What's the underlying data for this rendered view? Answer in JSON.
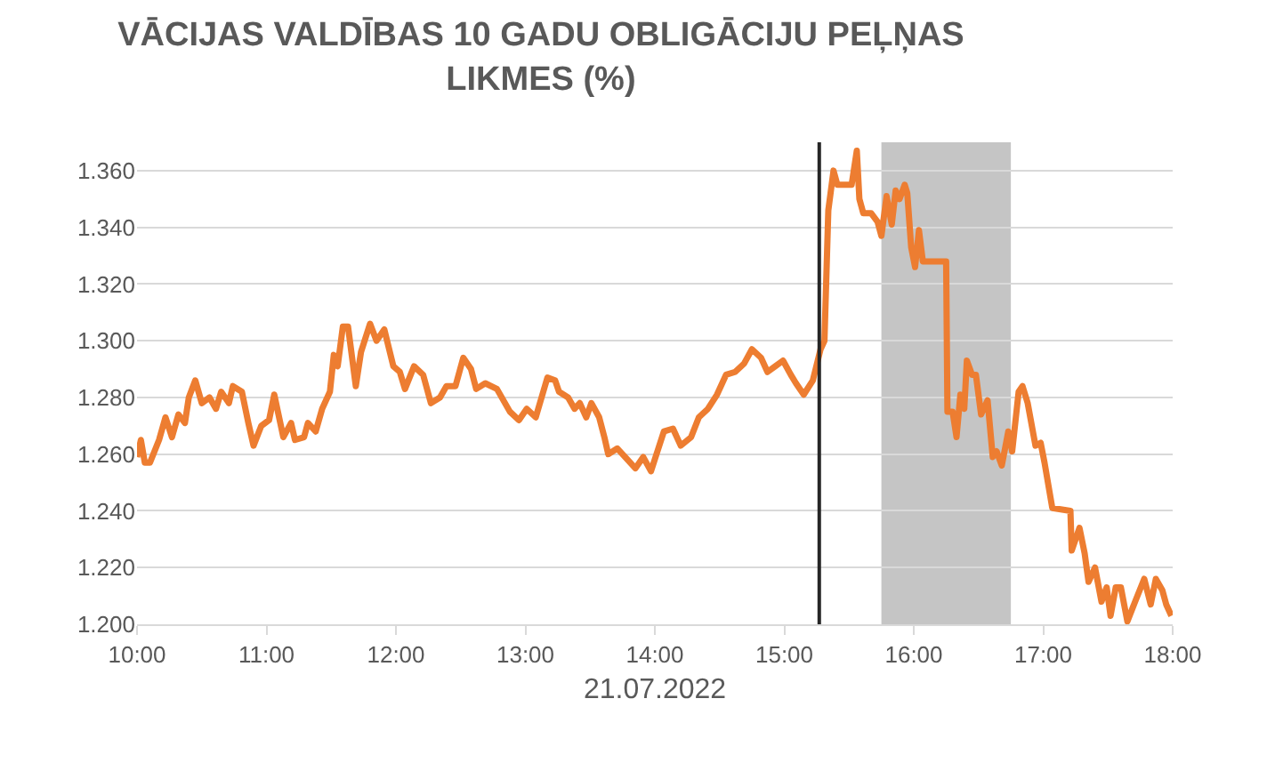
{
  "chart_data": {
    "type": "line",
    "title": "VĀCIJAS VALDĪBAS 10 GADU OBLIGĀCIJU PEĻŅAS\nLIKMES (%)",
    "xlabel": "21.07.2022",
    "x": [
      10.0,
      10.03,
      10.06,
      10.1,
      10.17,
      10.22,
      10.27,
      10.32,
      10.37,
      10.4,
      10.45,
      10.5,
      10.56,
      10.61,
      10.65,
      10.71,
      10.74,
      10.81,
      10.86,
      10.9,
      10.96,
      11.02,
      11.06,
      11.13,
      11.19,
      11.22,
      11.29,
      11.32,
      11.38,
      11.43,
      11.49,
      11.52,
      11.55,
      11.59,
      11.63,
      11.69,
      11.73,
      11.8,
      11.85,
      11.91,
      11.98,
      12.03,
      12.07,
      12.14,
      12.21,
      12.27,
      12.34,
      12.39,
      12.46,
      12.52,
      12.58,
      12.62,
      12.69,
      12.78,
      12.88,
      12.95,
      13.01,
      13.08,
      13.17,
      13.23,
      13.26,
      13.33,
      13.38,
      13.42,
      13.47,
      13.51,
      13.57,
      13.61,
      13.64,
      13.71,
      13.77,
      13.85,
      13.91,
      13.97,
      14.02,
      14.07,
      14.14,
      14.2,
      14.28,
      14.34,
      14.41,
      14.48,
      14.55,
      14.62,
      14.69,
      14.75,
      14.82,
      14.87,
      14.93,
      14.99,
      15.05,
      15.09,
      15.15,
      15.22,
      15.28,
      15.31,
      15.34,
      15.38,
      15.41,
      15.52,
      15.56,
      15.58,
      15.61,
      15.67,
      15.72,
      15.75,
      15.79,
      15.83,
      15.86,
      15.89,
      15.93,
      15.95,
      15.98,
      16.01,
      16.04,
      16.07,
      16.11,
      16.25,
      16.26,
      16.3,
      16.33,
      16.36,
      16.39,
      16.41,
      16.45,
      16.48,
      16.52,
      16.57,
      16.61,
      16.64,
      16.68,
      16.73,
      16.76,
      16.81,
      16.84,
      16.88,
      16.94,
      16.98,
      17.01,
      17.07,
      17.21,
      17.22,
      17.28,
      17.32,
      17.35,
      17.4,
      17.45,
      17.49,
      17.52,
      17.56,
      17.6,
      17.65,
      17.71,
      17.78,
      17.83,
      17.87,
      17.92,
      17.95,
      17.99
    ],
    "series": [
      {
        "color": "#ed7d31",
        "values": [
          1.259,
          1.265,
          1.257,
          1.257,
          1.265,
          1.273,
          1.266,
          1.274,
          1.271,
          1.28,
          1.286,
          1.278,
          1.28,
          1.276,
          1.282,
          1.278,
          1.284,
          1.282,
          1.271,
          1.263,
          1.27,
          1.272,
          1.281,
          1.266,
          1.271,
          1.265,
          1.266,
          1.271,
          1.268,
          1.276,
          1.282,
          1.295,
          1.291,
          1.305,
          1.305,
          1.284,
          1.296,
          1.306,
          1.3,
          1.304,
          1.291,
          1.289,
          1.283,
          1.291,
          1.288,
          1.278,
          1.28,
          1.284,
          1.284,
          1.294,
          1.29,
          1.283,
          1.285,
          1.283,
          1.275,
          1.272,
          1.276,
          1.273,
          1.287,
          1.286,
          1.282,
          1.28,
          1.276,
          1.278,
          1.273,
          1.278,
          1.273,
          1.266,
          1.26,
          1.262,
          1.259,
          1.255,
          1.259,
          1.254,
          1.261,
          1.268,
          1.269,
          1.263,
          1.266,
          1.273,
          1.276,
          1.281,
          1.288,
          1.289,
          1.292,
          1.297,
          1.294,
          1.289,
          1.291,
          1.293,
          1.288,
          1.285,
          1.281,
          1.286,
          1.297,
          1.3,
          1.346,
          1.36,
          1.355,
          1.355,
          1.367,
          1.35,
          1.345,
          1.345,
          1.342,
          1.337,
          1.351,
          1.341,
          1.353,
          1.35,
          1.355,
          1.352,
          1.333,
          1.326,
          1.339,
          1.328,
          1.328,
          1.328,
          1.275,
          1.275,
          1.266,
          1.281,
          1.276,
          1.293,
          1.288,
          1.288,
          1.274,
          1.279,
          1.259,
          1.261,
          1.256,
          1.268,
          1.261,
          1.282,
          1.284,
          1.278,
          1.263,
          1.264,
          1.257,
          1.241,
          1.24,
          1.226,
          1.234,
          1.225,
          1.215,
          1.22,
          1.208,
          1.213,
          1.203,
          1.213,
          1.213,
          1.201,
          1.208,
          1.216,
          1.207,
          1.216,
          1.212,
          1.207,
          1.203
        ]
      }
    ],
    "xlim": [
      10,
      18
    ],
    "xticks": [
      {
        "value": 10,
        "label": "10:00"
      },
      {
        "value": 11,
        "label": "11:00"
      },
      {
        "value": 12,
        "label": "12:00"
      },
      {
        "value": 13,
        "label": "13:00"
      },
      {
        "value": 14,
        "label": "14:00"
      },
      {
        "value": 15,
        "label": "15:00"
      },
      {
        "value": 16,
        "label": "16:00"
      },
      {
        "value": 17,
        "label": "17:00"
      },
      {
        "value": 18,
        "label": "18:00"
      }
    ],
    "ylim": [
      1.2,
      1.37
    ],
    "yticks": [
      {
        "value": 1.2,
        "label": "1.200"
      },
      {
        "value": 1.22,
        "label": "1.220"
      },
      {
        "value": 1.24,
        "label": "1.240"
      },
      {
        "value": 1.26,
        "label": "1.260"
      },
      {
        "value": 1.28,
        "label": "1.280"
      },
      {
        "value": 1.3,
        "label": "1.300"
      },
      {
        "value": 1.32,
        "label": "1.320"
      },
      {
        "value": 1.34,
        "label": "1.340"
      },
      {
        "value": 1.36,
        "label": "1.360"
      }
    ],
    "ref_lines": [
      {
        "axis": "x",
        "value": 15.27,
        "color": "#262626"
      }
    ],
    "bands": [
      {
        "axis": "x",
        "from": 15.75,
        "to": 16.75,
        "color": "#a6a6a6"
      }
    ],
    "grid": "y",
    "marker": "none",
    "line_style": "solid"
  }
}
